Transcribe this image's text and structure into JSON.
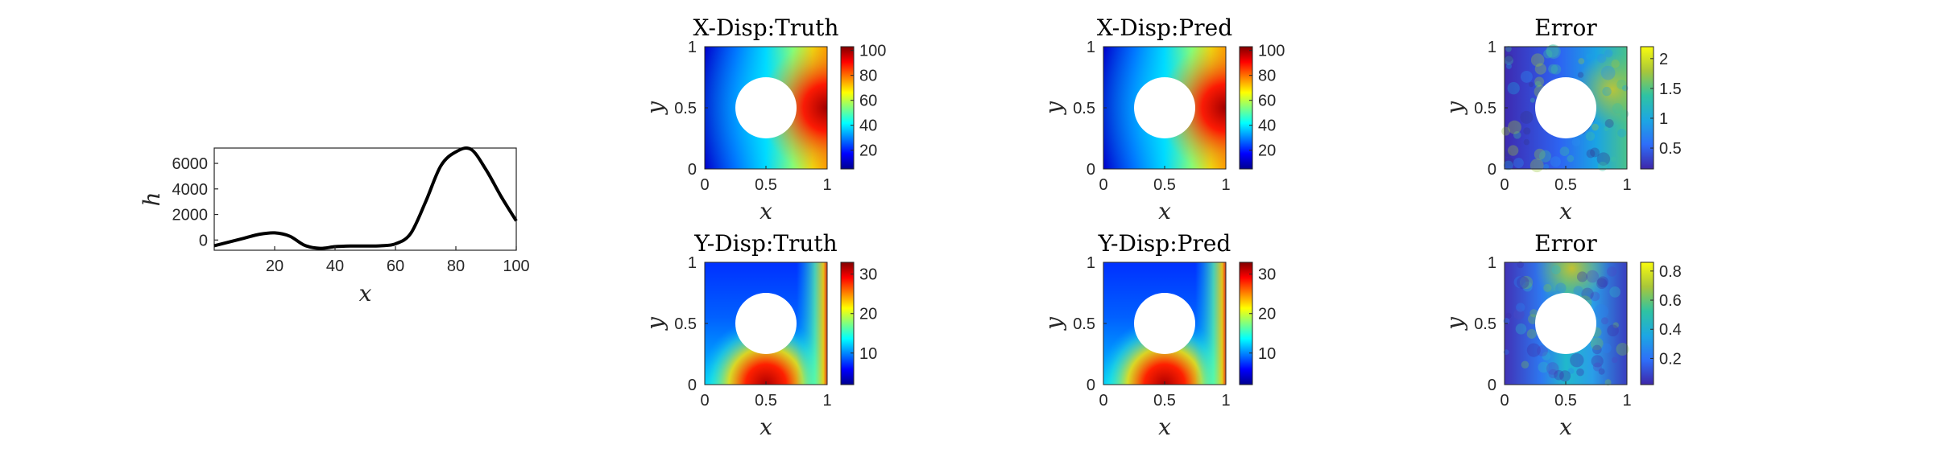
{
  "colors": {
    "axis": "#262626",
    "line": "#000000",
    "hole": "#ffffff"
  },
  "chart_data": [
    {
      "type": "line",
      "title": "",
      "xlabel": "x",
      "ylabel": "h",
      "xlim": [
        0,
        100
      ],
      "ylim": [
        -800,
        7200
      ],
      "xticks": [
        "20",
        "40",
        "60",
        "80",
        "100"
      ],
      "yticks": [
        "0",
        "2000",
        "4000",
        "6000"
      ],
      "series": [
        {
          "x": [
            0,
            5,
            10,
            15,
            20,
            25,
            30,
            35,
            40,
            45,
            50,
            55,
            60,
            65,
            70,
            75,
            80,
            85,
            90,
            95,
            100
          ],
          "y": [
            -450,
            -150,
            150,
            450,
            560,
            300,
            -420,
            -650,
            -520,
            -470,
            -470,
            -450,
            -300,
            500,
            3000,
            5800,
            6900,
            7100,
            5500,
            3400,
            1500
          ]
        }
      ]
    },
    {
      "type": "heatmap",
      "title": "X-Disp:Truth",
      "xlabel": "x",
      "ylabel": "y",
      "xticks": [
        "0",
        "0.5",
        "1"
      ],
      "yticks": [
        "0",
        "0.5",
        "1"
      ],
      "colorbar": {
        "colormap": "jet",
        "range": [
          5,
          103
        ],
        "ticks": [
          "20",
          "40",
          "60",
          "80",
          "100"
        ]
      }
    },
    {
      "type": "heatmap",
      "title": "X-Disp:Pred",
      "xlabel": "x",
      "ylabel": "y",
      "xticks": [
        "0",
        "0.5",
        "1"
      ],
      "yticks": [
        "0",
        "0.5",
        "1"
      ],
      "colorbar": {
        "colormap": "jet",
        "range": [
          5,
          103
        ],
        "ticks": [
          "20",
          "40",
          "60",
          "80",
          "100"
        ]
      }
    },
    {
      "type": "heatmap",
      "title": "Error",
      "xlabel": "x",
      "ylabel": "y",
      "xticks": [
        "0",
        "0.5",
        "1"
      ],
      "yticks": [
        "0",
        "0.5",
        "1"
      ],
      "colorbar": {
        "colormap": "parula",
        "range": [
          0.15,
          2.2
        ],
        "ticks": [
          "0.5",
          "1",
          "1.5",
          "2"
        ]
      }
    },
    {
      "type": "heatmap",
      "title": "Y-Disp:Truth",
      "xlabel": "x",
      "ylabel": "y",
      "xticks": [
        "0",
        "0.5",
        "1"
      ],
      "yticks": [
        "0",
        "0.5",
        "1"
      ],
      "colorbar": {
        "colormap": "jet",
        "range": [
          2,
          33
        ],
        "ticks": [
          "10",
          "20",
          "30"
        ]
      }
    },
    {
      "type": "heatmap",
      "title": "Y-Disp:Pred",
      "xlabel": "x",
      "ylabel": "y",
      "xticks": [
        "0",
        "0.5",
        "1"
      ],
      "yticks": [
        "0",
        "0.5",
        "1"
      ],
      "colorbar": {
        "colormap": "jet",
        "range": [
          2,
          33
        ],
        "ticks": [
          "10",
          "20",
          "30"
        ]
      }
    },
    {
      "type": "heatmap",
      "title": "Error",
      "xlabel": "x",
      "ylabel": "y",
      "xticks": [
        "0",
        "0.5",
        "1"
      ],
      "yticks": [
        "0",
        "0.5",
        "1"
      ],
      "colorbar": {
        "colormap": "parula",
        "range": [
          0.02,
          0.86
        ],
        "ticks": [
          "0.2",
          "0.4",
          "0.6",
          "0.8"
        ]
      }
    }
  ]
}
